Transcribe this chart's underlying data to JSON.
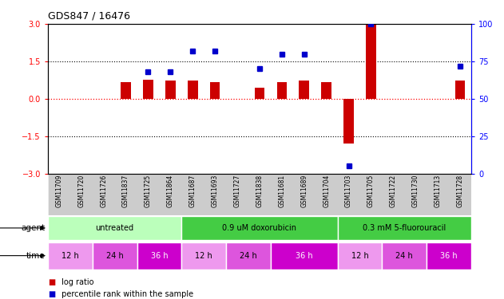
{
  "title": "GDS847 / 16476",
  "samples": [
    "GSM11709",
    "GSM11720",
    "GSM11726",
    "GSM11837",
    "GSM11725",
    "GSM11864",
    "GSM11687",
    "GSM11693",
    "GSM11727",
    "GSM11838",
    "GSM11681",
    "GSM11689",
    "GSM11704",
    "GSM11703",
    "GSM11705",
    "GSM11722",
    "GSM11730",
    "GSM11713",
    "GSM11728"
  ],
  "log_ratio": [
    0.0,
    0.0,
    0.0,
    0.65,
    0.75,
    0.72,
    0.72,
    0.68,
    0.0,
    0.45,
    0.65,
    0.72,
    0.68,
    -1.8,
    3.0,
    0.0,
    0.0,
    0.0,
    0.72
  ],
  "percentile_rank": [
    null,
    null,
    null,
    null,
    68,
    68,
    82,
    82,
    null,
    70,
    80,
    80,
    null,
    5,
    100,
    null,
    null,
    null,
    72
  ],
  "ylim_left": [
    -3,
    3
  ],
  "ylim_right": [
    0,
    100
  ],
  "yticks_left": [
    -3,
    -1.5,
    0,
    1.5,
    3
  ],
  "yticks_right": [
    0,
    25,
    50,
    75,
    100
  ],
  "agent_groups": [
    {
      "label": "untreated",
      "start": 0,
      "end": 6,
      "color": "#bbffbb"
    },
    {
      "label": "0.9 uM doxorubicin",
      "start": 6,
      "end": 13,
      "color": "#44cc44"
    },
    {
      "label": "0.3 mM 5-fluorouracil",
      "start": 13,
      "end": 19,
      "color": "#44cc44"
    }
  ],
  "time_groups": [
    {
      "label": "12 h",
      "start": 0,
      "end": 2,
      "color": "#ee99ee"
    },
    {
      "label": "24 h",
      "start": 2,
      "end": 4,
      "color": "#dd55dd"
    },
    {
      "label": "36 h",
      "start": 4,
      "end": 6,
      "color": "#cc00cc"
    },
    {
      "label": "12 h",
      "start": 6,
      "end": 8,
      "color": "#ee99ee"
    },
    {
      "label": "24 h",
      "start": 8,
      "end": 10,
      "color": "#dd55dd"
    },
    {
      "label": "36 h",
      "start": 10,
      "end": 13,
      "color": "#cc00cc"
    },
    {
      "label": "12 h",
      "start": 13,
      "end": 15,
      "color": "#ee99ee"
    },
    {
      "label": "24 h",
      "start": 15,
      "end": 17,
      "color": "#dd55dd"
    },
    {
      "label": "36 h",
      "start": 17,
      "end": 19,
      "color": "#cc00cc"
    }
  ],
  "bar_color": "#cc0000",
  "dot_color": "#0000cc",
  "background_color": "#ffffff",
  "label_bg": "#cccccc"
}
